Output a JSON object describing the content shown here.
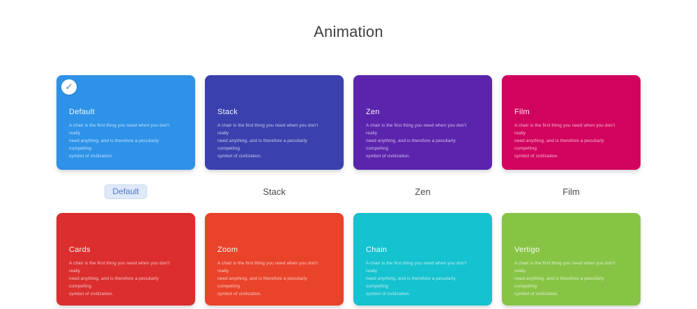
{
  "page": {
    "title": "Animation",
    "background": "#ffffff"
  },
  "theme": {
    "selected_chip_bg": "#dfe9f8",
    "selected_chip_text": "#4d78cc",
    "selected_chip_border": "#c9d9f0"
  },
  "icons": {
    "selected_check": "✓"
  },
  "card_description_lines": [
    "A chair is the first thing you need when you don't really",
    "need anything, and is therefore a peculiarly compelling",
    "symbol of civilization."
  ],
  "cards": [
    {
      "title": "Default",
      "label": "Default",
      "color": "#2d92e8",
      "selected": true
    },
    {
      "title": "Stack",
      "label": "Stack",
      "color": "#3a41ae",
      "selected": false
    },
    {
      "title": "Zen",
      "label": "Zen",
      "color": "#5a24ad",
      "selected": false
    },
    {
      "title": "Film",
      "label": "Film",
      "color": "#d2035e",
      "selected": false
    },
    {
      "title": "Cards",
      "color": "#dc2e2e",
      "selected": false
    },
    {
      "title": "Zoom",
      "color": "#e9432a",
      "selected": false
    },
    {
      "title": "Chain",
      "color": "#15c2cf",
      "selected": false
    },
    {
      "title": "Vertigo",
      "color": "#87c445",
      "selected": false
    }
  ]
}
